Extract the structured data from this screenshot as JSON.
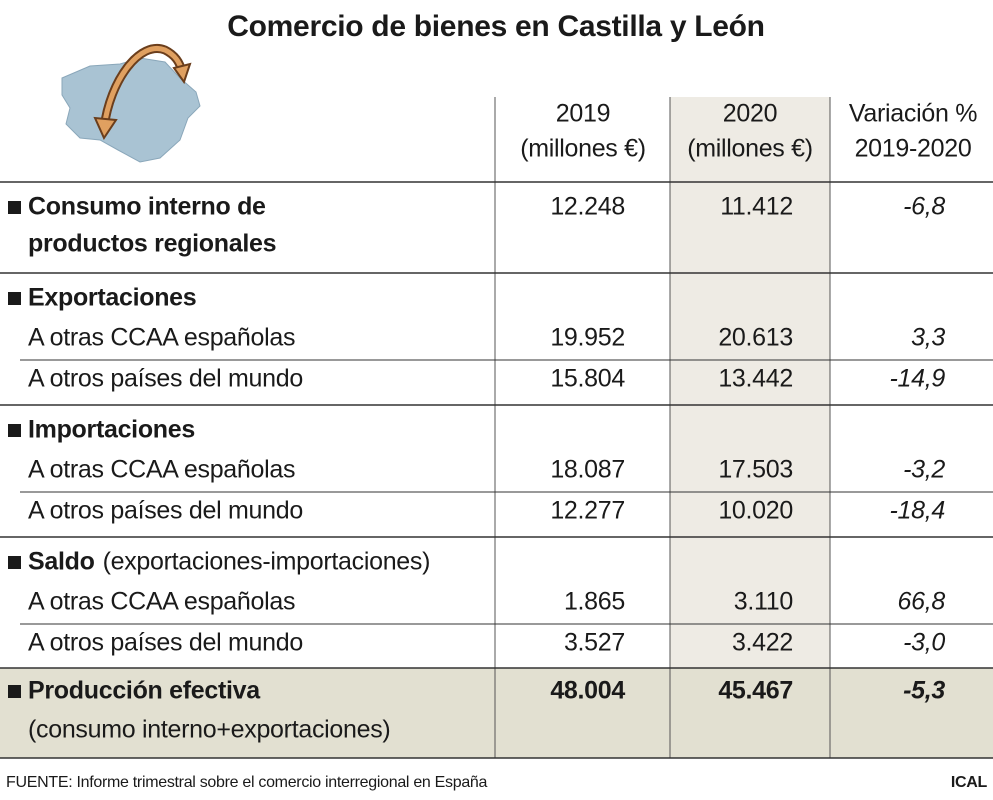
{
  "header": {
    "title": "Comercio de bienes en Castilla y León"
  },
  "columns": [
    {
      "line1": "2019",
      "line2": "(millones €)"
    },
    {
      "line1": "2020",
      "line2": "(millones €)"
    },
    {
      "line1": "Variación %",
      "line2": "2019-2020"
    }
  ],
  "consumo": {
    "label": [
      "Consumo interno de",
      "productos regionales"
    ],
    "values": [
      "12.248",
      "11.412",
      "-6,8"
    ]
  },
  "groups": [
    {
      "title": "Exportaciones",
      "rows": [
        {
          "label": "A otras CCAA españolas",
          "values": [
            "19.952",
            "20.613",
            "3,3"
          ]
        },
        {
          "label": "A otros países del mundo",
          "values": [
            "15.804",
            "13.442",
            "-14,9"
          ]
        }
      ]
    },
    {
      "title": "Importaciones",
      "rows": [
        {
          "label": "A otras CCAA españolas",
          "values": [
            "18.087",
            "17.503",
            "-3,2"
          ]
        },
        {
          "label": "A otros países del mundo",
          "values": [
            "12.277",
            "10.020",
            "-18,4"
          ]
        }
      ]
    },
    {
      "title": "Saldo",
      "subtitle": "(exportaciones-importaciones)",
      "rows": [
        {
          "label": "A otras CCAA españolas",
          "values": [
            "1.865",
            "3.110",
            "66,8"
          ]
        },
        {
          "label": "A otros países del mundo",
          "values": [
            "3.527",
            "3.422",
            "-3,0"
          ]
        }
      ]
    }
  ],
  "total": {
    "label": "Producción efectiva",
    "note": "(consumo interno+exportaciones)",
    "values": [
      "48.004",
      "45.467",
      "-5,3"
    ]
  },
  "footer": {
    "source": "FUENTE: Informe trimestral sobre el comercio interregional en España",
    "credit": "ICAL"
  }
}
